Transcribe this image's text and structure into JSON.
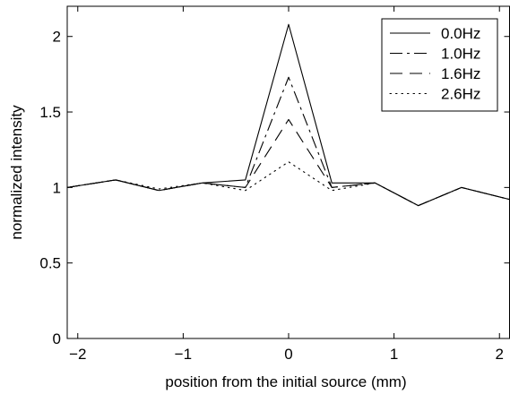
{
  "chart_data": {
    "type": "line",
    "xlabel": "position from the initial source (mm)",
    "ylabel": "normalized intensity",
    "xlim": [
      -2.1,
      2.1
    ],
    "ylim": [
      0,
      2.2
    ],
    "xticks": [
      -2,
      -1,
      0,
      1,
      2
    ],
    "xtick_labels": [
      "−2",
      "−1",
      "0",
      "1",
      "2"
    ],
    "yticks": [
      0,
      0.5,
      1,
      1.5,
      2
    ],
    "ytick_labels": [
      "0",
      "0.5",
      "1",
      "1.5",
      "2"
    ],
    "grid": false,
    "legend_position": "top-right",
    "x": [
      -2.1,
      -1.64,
      -1.23,
      -0.82,
      -0.41,
      0.0,
      0.41,
      0.82,
      1.23,
      1.64,
      2.1
    ],
    "series": [
      {
        "name": "0.0Hz",
        "line_style": "solid",
        "values": [
          1.0,
          1.05,
          0.98,
          1.03,
          1.05,
          2.08,
          1.03,
          1.03,
          0.88,
          1.0,
          0.92
        ]
      },
      {
        "name": "1.0Hz",
        "line_style": "dashdot",
        "values": [
          1.0,
          1.05,
          0.98,
          1.03,
          1.0,
          1.73,
          1.0,
          1.03,
          0.88,
          1.0,
          0.92
        ]
      },
      {
        "name": "1.6Hz",
        "line_style": "dashed",
        "values": [
          1.0,
          1.05,
          0.98,
          1.03,
          1.0,
          1.45,
          1.0,
          1.03,
          0.88,
          1.0,
          0.92
        ]
      },
      {
        "name": "2.6Hz",
        "line_style": "dotted",
        "values": [
          1.0,
          1.05,
          0.99,
          1.03,
          0.98,
          1.17,
          0.98,
          1.03,
          0.88,
          1.0,
          0.92
        ]
      }
    ],
    "colors": {
      "line": "#000000",
      "background": "#ffffff"
    }
  }
}
